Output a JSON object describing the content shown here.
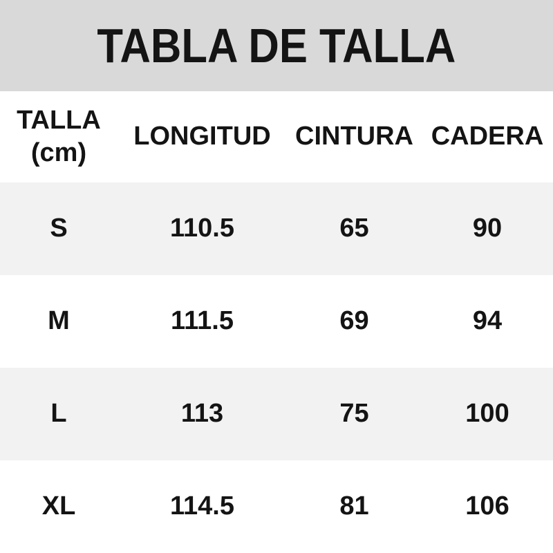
{
  "title": "TABLA DE TALLA",
  "table": {
    "header": {
      "talla_line1": "TALLA",
      "talla_line2": "(cm)",
      "longitud": "LONGITUD",
      "cintura": "CINTURA",
      "cadera": "CADERA"
    },
    "rows": [
      {
        "talla": "S",
        "longitud": "110.5",
        "cintura": "65",
        "cadera": "90"
      },
      {
        "talla": "M",
        "longitud": "111.5",
        "cintura": "69",
        "cadera": "94"
      },
      {
        "talla": "L",
        "longitud": "113",
        "cintura": "75",
        "cadera": "100"
      },
      {
        "talla": "XL",
        "longitud": "114.5",
        "cintura": "81",
        "cadera": "106"
      }
    ]
  },
  "chart_data": {
    "type": "table",
    "title": "TABLA DE TALLA",
    "columns": [
      "TALLA (cm)",
      "LONGITUD",
      "CINTURA",
      "CADERA"
    ],
    "rows": [
      [
        "S",
        110.5,
        65,
        90
      ],
      [
        "M",
        111.5,
        69,
        94
      ],
      [
        "L",
        113,
        75,
        100
      ],
      [
        "XL",
        114.5,
        81,
        106
      ]
    ],
    "units": "cm"
  },
  "colors": {
    "title_bg": "#d9d9d9",
    "row_alt_bg": "#f2f2f2",
    "row_bg": "#ffffff",
    "text": "#141414"
  }
}
